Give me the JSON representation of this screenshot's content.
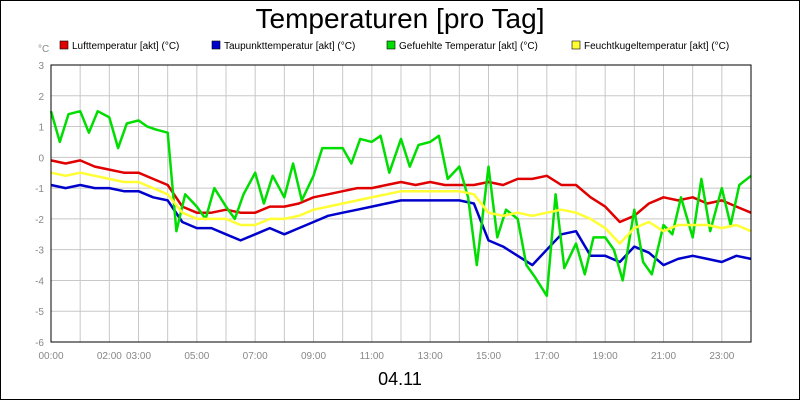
{
  "chart_data": {
    "type": "line",
    "title": "Temperaturen [pro Tag]",
    "y_unit": "°C",
    "x_caption": "04.11",
    "ylim": [
      -6,
      3
    ],
    "y_ticks": [
      3,
      2,
      1,
      0,
      -1,
      -2,
      -3,
      -4,
      -5,
      -6
    ],
    "xlim": [
      0,
      24
    ],
    "x_tick_labels": [
      "00:00",
      "02:00",
      "03:00",
      "05:00",
      "07:00",
      "09:00",
      "11:00",
      "13:00",
      "15:00",
      "17:00",
      "19:00",
      "21:00",
      "23:00"
    ],
    "x_tick_hours": [
      0,
      2,
      3,
      5,
      7,
      9,
      11,
      13,
      15,
      17,
      19,
      21,
      23
    ],
    "grid": true,
    "legend_position": "top",
    "series": [
      {
        "name": "Lufttemperatur [akt] (°C)",
        "color": "#e00000",
        "x": [
          0,
          0.5,
          1,
          1.5,
          2,
          2.5,
          3,
          3.5,
          4,
          4.5,
          5,
          5.5,
          6,
          6.5,
          7,
          7.5,
          8,
          8.5,
          9,
          9.5,
          10,
          10.5,
          11,
          11.5,
          12,
          12.5,
          13,
          13.5,
          14,
          14.5,
          15,
          15.5,
          16,
          16.5,
          17,
          17.5,
          18,
          18.5,
          19,
          19.5,
          20,
          20.5,
          21,
          21.5,
          22,
          22.5,
          23,
          23.5,
          24
        ],
        "y": [
          -0.1,
          -0.2,
          -0.1,
          -0.3,
          -0.4,
          -0.5,
          -0.5,
          -0.7,
          -0.9,
          -1.6,
          -1.8,
          -1.8,
          -1.7,
          -1.8,
          -1.8,
          -1.6,
          -1.6,
          -1.5,
          -1.3,
          -1.2,
          -1.1,
          -1.0,
          -1.0,
          -0.9,
          -0.8,
          -0.9,
          -0.8,
          -0.9,
          -0.9,
          -0.9,
          -0.8,
          -0.9,
          -0.7,
          -0.7,
          -0.6,
          -0.9,
          -0.9,
          -1.3,
          -1.6,
          -2.1,
          -1.9,
          -1.5,
          -1.3,
          -1.4,
          -1.3,
          -1.5,
          -1.4,
          -1.6,
          -1.8
        ]
      },
      {
        "name": "Taupunkttemperatur [akt] (°C)",
        "color": "#0000cc",
        "x": [
          0,
          0.5,
          1,
          1.5,
          2,
          2.5,
          3,
          3.5,
          4,
          4.5,
          5,
          5.5,
          6,
          6.5,
          7,
          7.5,
          8,
          8.5,
          9,
          9.5,
          10,
          10.5,
          11,
          11.5,
          12,
          12.5,
          13,
          13.5,
          14,
          14.5,
          15,
          15.5,
          16,
          16.5,
          17,
          17.5,
          18,
          18.5,
          19,
          19.5,
          20,
          20.5,
          21,
          21.5,
          22,
          22.5,
          23,
          23.5,
          24
        ],
        "y": [
          -0.9,
          -1.0,
          -0.9,
          -1.0,
          -1.0,
          -1.1,
          -1.1,
          -1.3,
          -1.4,
          -2.1,
          -2.3,
          -2.3,
          -2.5,
          -2.7,
          -2.5,
          -2.3,
          -2.5,
          -2.3,
          -2.1,
          -1.9,
          -1.8,
          -1.7,
          -1.6,
          -1.5,
          -1.4,
          -1.4,
          -1.4,
          -1.4,
          -1.4,
          -1.5,
          -2.7,
          -2.9,
          -3.2,
          -3.5,
          -3.0,
          -2.5,
          -2.4,
          -3.2,
          -3.2,
          -3.4,
          -2.9,
          -3.1,
          -3.5,
          -3.3,
          -3.2,
          -3.3,
          -3.4,
          -3.2,
          -3.3
        ]
      },
      {
        "name": "Gefuehlte Temperatur [akt] (°C)",
        "color": "#00dd00",
        "x": [
          0,
          0.3,
          0.6,
          1,
          1.3,
          1.6,
          2,
          2.3,
          2.6,
          3,
          3.3,
          3.6,
          4,
          4.3,
          4.6,
          5,
          5.3,
          5.6,
          6,
          6.3,
          6.6,
          7,
          7.3,
          7.6,
          8,
          8.3,
          8.6,
          9,
          9.3,
          9.6,
          10,
          10.3,
          10.6,
          11,
          11.3,
          11.6,
          12,
          12.3,
          12.6,
          13,
          13.3,
          13.6,
          14,
          14.3,
          14.6,
          15,
          15.3,
          15.6,
          16,
          16.3,
          16.6,
          17,
          17.3,
          17.6,
          18,
          18.3,
          18.6,
          19,
          19.3,
          19.6,
          20,
          20.3,
          20.6,
          21,
          21.3,
          21.6,
          22,
          22.3,
          22.6,
          23,
          23.3,
          23.6,
          24
        ],
        "y": [
          1.5,
          0.5,
          1.4,
          1.5,
          0.8,
          1.5,
          1.3,
          0.3,
          1.1,
          1.2,
          1.0,
          0.9,
          0.8,
          -2.4,
          -1.2,
          -1.6,
          -2.0,
          -1.0,
          -1.6,
          -2.0,
          -1.2,
          -0.5,
          -1.5,
          -0.6,
          -1.3,
          -0.2,
          -1.4,
          -0.6,
          0.3,
          0.3,
          0.3,
          -0.2,
          0.6,
          0.5,
          0.7,
          -0.5,
          0.6,
          -0.3,
          0.4,
          0.5,
          0.7,
          -0.7,
          -0.3,
          -1.3,
          -3.5,
          -0.3,
          -2.6,
          -1.7,
          -2.0,
          -3.5,
          -3.9,
          -4.5,
          -1.2,
          -3.6,
          -2.8,
          -3.8,
          -2.6,
          -2.6,
          -3.0,
          -4.0,
          -1.7,
          -3.4,
          -3.8,
          -2.2,
          -2.5,
          -1.3,
          -2.6,
          -0.7,
          -2.4,
          -1.0,
          -2.2,
          -0.9,
          -0.6
        ]
      },
      {
        "name": "Feuchtkugeltemperatur [akt] (°C)",
        "color": "#ffff33",
        "x": [
          0,
          0.5,
          1,
          1.5,
          2,
          2.5,
          3,
          3.5,
          4,
          4.5,
          5,
          5.5,
          6,
          6.5,
          7,
          7.5,
          8,
          8.5,
          9,
          9.5,
          10,
          10.5,
          11,
          11.5,
          12,
          12.5,
          13,
          13.5,
          14,
          14.5,
          15,
          15.5,
          16,
          16.5,
          17,
          17.5,
          18,
          18.5,
          19,
          19.5,
          20,
          20.5,
          21,
          21.5,
          22,
          22.5,
          23,
          23.5,
          24
        ],
        "y": [
          -0.5,
          -0.6,
          -0.5,
          -0.6,
          -0.7,
          -0.8,
          -0.8,
          -1.0,
          -1.2,
          -1.8,
          -2.0,
          -2.0,
          -2.0,
          -2.2,
          -2.2,
          -2.0,
          -2.0,
          -1.9,
          -1.7,
          -1.6,
          -1.5,
          -1.4,
          -1.3,
          -1.2,
          -1.1,
          -1.1,
          -1.1,
          -1.1,
          -1.1,
          -1.2,
          -1.8,
          -1.9,
          -1.8,
          -1.9,
          -1.8,
          -1.7,
          -1.8,
          -2.0,
          -2.3,
          -2.8,
          -2.3,
          -2.1,
          -2.4,
          -2.2,
          -2.2,
          -2.2,
          -2.3,
          -2.2,
          -2.4
        ]
      }
    ]
  }
}
